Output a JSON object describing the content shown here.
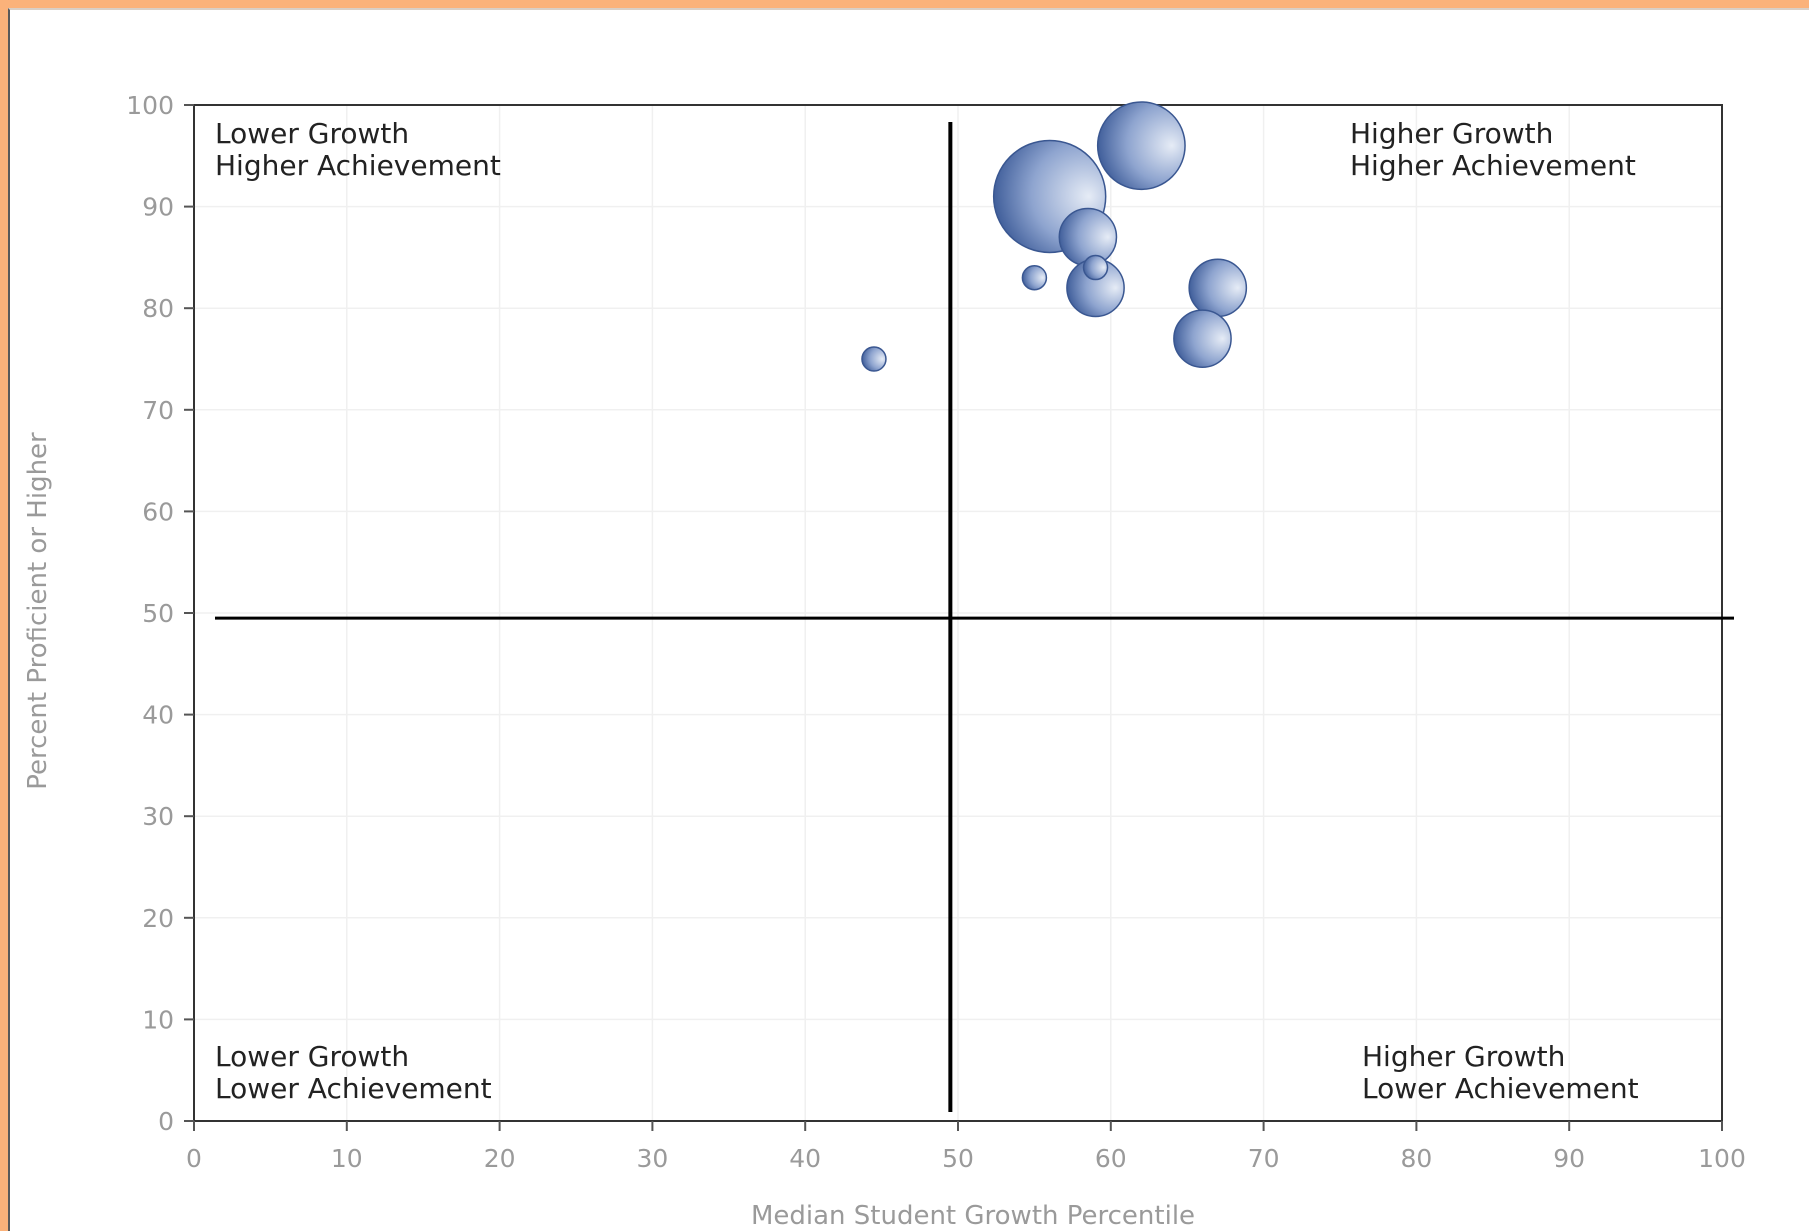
{
  "chart_data": {
    "type": "scatter",
    "variant": "bubble",
    "xlabel": "Median Student Growth Percentile",
    "ylabel": "Percent Proficient or Higher",
    "xlim": [
      0,
      100
    ],
    "ylim": [
      0,
      100
    ],
    "x_ticks": [
      "0",
      "10",
      "20",
      "30",
      "40",
      "50",
      "60",
      "70",
      "80",
      "90",
      "100"
    ],
    "y_ticks": [
      "0",
      "10",
      "20",
      "30",
      "40",
      "50",
      "60",
      "70",
      "80",
      "90",
      "100"
    ],
    "grid": true,
    "reference_lines": {
      "x": 49.5,
      "y": 49.5
    },
    "quadrant_labels": {
      "top_left": [
        "Lower Growth",
        "Higher Achievement"
      ],
      "top_right": [
        "Higher Growth",
        "Higher Achievement"
      ],
      "bottom_left": [
        "Lower Growth",
        "Lower Achievement"
      ],
      "bottom_right": [
        "Higher Growth",
        "Lower Achievement"
      ]
    },
    "points": [
      {
        "x": 44.5,
        "y": 75,
        "size": 1
      },
      {
        "x": 55,
        "y": 83,
        "size": 1
      },
      {
        "x": 59,
        "y": 84,
        "size": 0.9
      },
      {
        "x": 58.5,
        "y": 87,
        "size": 6
      },
      {
        "x": 59,
        "y": 82,
        "size": 6
      },
      {
        "x": 56,
        "y": 91,
        "size": 23
      },
      {
        "x": 62,
        "y": 96,
        "size": 14
      },
      {
        "x": 67,
        "y": 82,
        "size": 6
      },
      {
        "x": 66,
        "y": 77,
        "size": 6
      }
    ],
    "colors": {
      "bubble_dark": "#2f4f8f",
      "bubble_light": "#dce4f2",
      "bubble_stroke": "#3a5791"
    }
  }
}
